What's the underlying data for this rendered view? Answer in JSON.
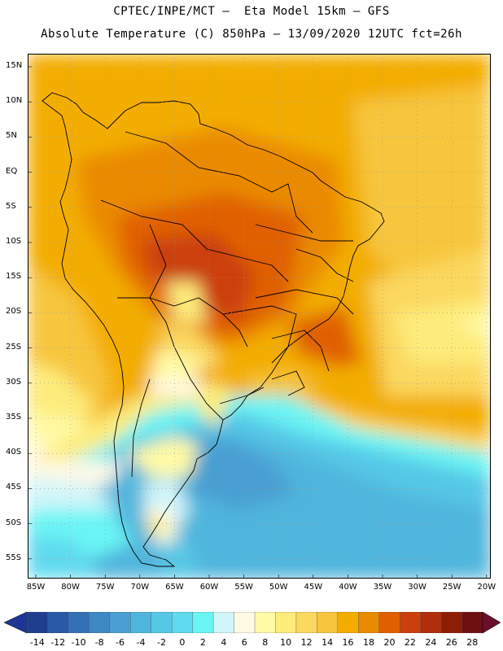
{
  "header": {
    "title_line1": "CPTEC/INPE/MCT –  Eta Model 15km – GFS",
    "title_line2": "Absolute Temperature (C) 850hPa – 13/09/2020 12UTC fct=26h"
  },
  "map": {
    "lat_ticks": [
      "15N",
      "10N",
      "5N",
      "EQ",
      "5S",
      "10S",
      "15S",
      "20S",
      "25S",
      "30S",
      "35S",
      "40S",
      "45S",
      "50S",
      "55S"
    ],
    "lon_ticks": [
      "85W",
      "80W",
      "75W",
      "70W",
      "65W",
      "60W",
      "55W",
      "50W",
      "45W",
      "40W",
      "35W",
      "30W",
      "25W",
      "20W"
    ],
    "grid": true
  },
  "colorbar": {
    "labels": [
      "-14",
      "-12",
      "-10",
      "-8",
      "-6",
      "-4",
      "-2",
      "0",
      "2",
      "4",
      "6",
      "8",
      "10",
      "12",
      "14",
      "16",
      "18",
      "20",
      "22",
      "24",
      "26",
      "28"
    ],
    "colors": [
      "#1e3f8e",
      "#2a59a6",
      "#3470b6",
      "#3f88c6",
      "#4a9fd2",
      "#4fb5dd",
      "#55c8e6",
      "#5fdaef",
      "#6af5f5",
      "#d2f5f9",
      "#fff9e6",
      "#fffaa5",
      "#fdec7c",
      "#fbd85f",
      "#f7c63c",
      "#f3ad00",
      "#ea8a00",
      "#e06000",
      "#cb3f0b",
      "#b02e0b",
      "#8d1e06",
      "#6e0f12"
    ],
    "under_color": "#1e3596",
    "over_color": "#6b0e2b"
  }
}
